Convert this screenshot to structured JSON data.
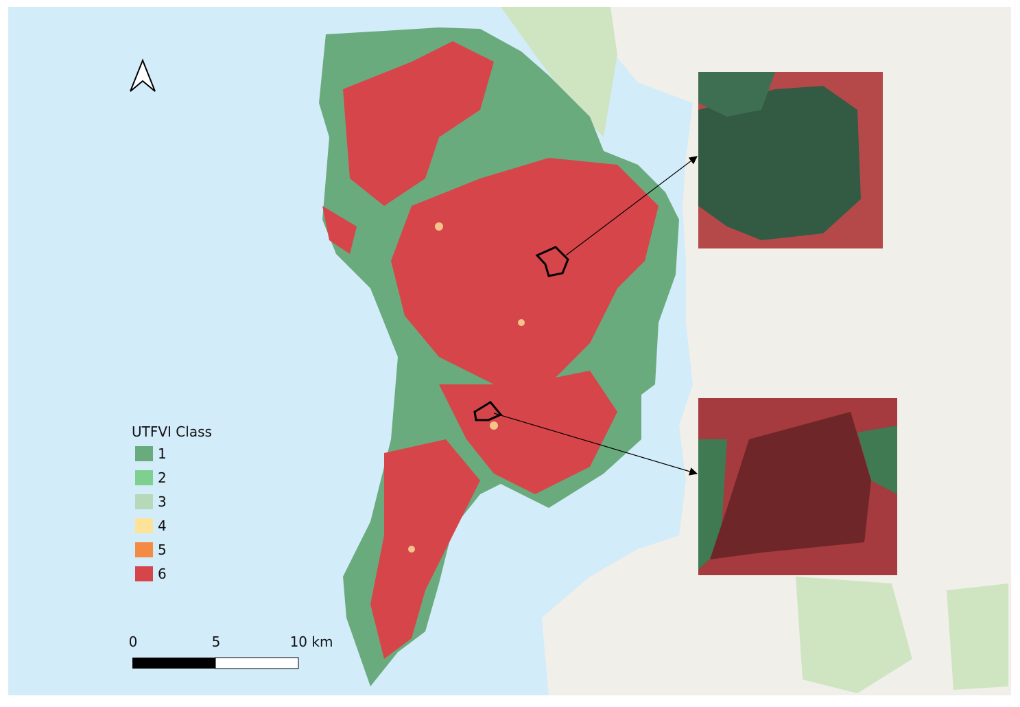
{
  "legend": {
    "title": "UTFVI Class",
    "items": [
      {
        "label": "1",
        "color": "#6aab7e"
      },
      {
        "label": "2",
        "color": "#7fd08f"
      },
      {
        "label": "3",
        "color": "#b5d9b9"
      },
      {
        "label": "4",
        "color": "#fde39a"
      },
      {
        "label": "5",
        "color": "#f48b45"
      },
      {
        "label": "6",
        "color": "#d6454a"
      }
    ]
  },
  "scale_bar": {
    "labels": [
      "0",
      "5",
      "10 km"
    ]
  }
}
